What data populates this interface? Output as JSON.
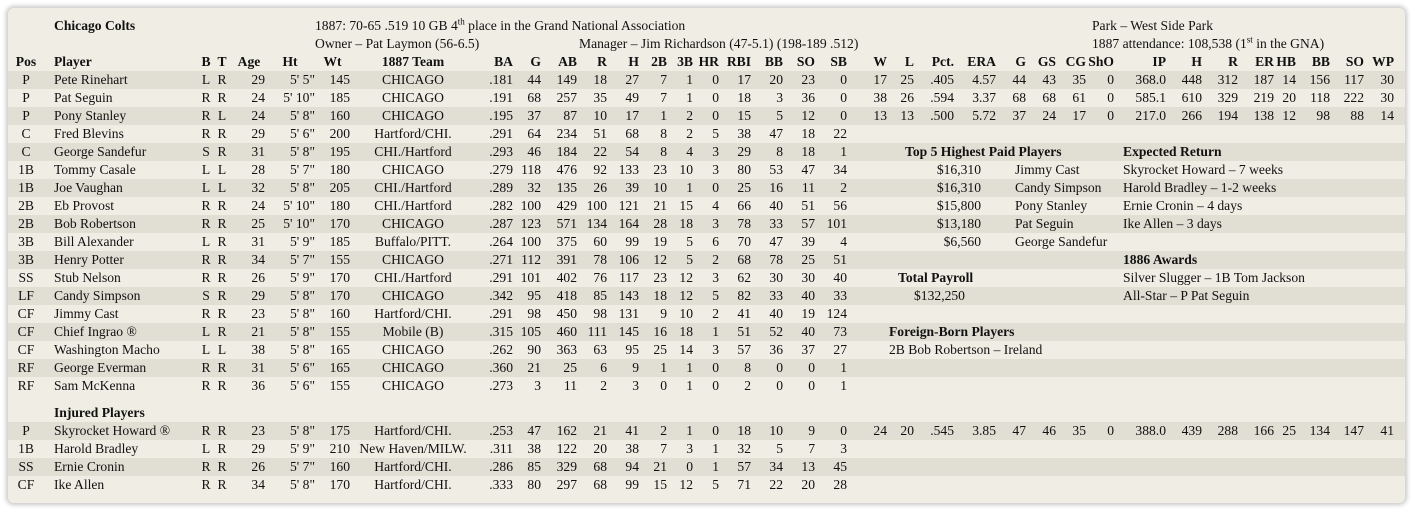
{
  "header": {
    "team": "Chicago Colts",
    "season_line": "1887:  70-65  .519  10 GB  4",
    "season_sup": "th",
    "season_rest": " place in the Grand National Association",
    "owner": "Owner – Pat Laymon (56-6.5)",
    "manager": "Manager – Jim Richardson (47-5.1)  (198-189 .512)",
    "park": "Park – West Side Park",
    "attendance": "1887 attendance:  108,538  (1",
    "attendance_sup": "st",
    "attendance_rest": " in the GNA)"
  },
  "columns": [
    "Pos",
    "Player",
    "B",
    "T",
    "Age",
    "Ht",
    "Wt",
    "1887 Team",
    "BA",
    "G",
    "AB",
    "R",
    "H",
    "2B",
    "3B",
    "HR",
    "RBI",
    "BB",
    "SO",
    "SB",
    "W",
    "L",
    "Pct.",
    "ERA",
    "G",
    "GS",
    "CG",
    "ShO",
    "IP",
    "H",
    "R",
    "ER",
    "HB",
    "BB",
    "SO",
    "WP"
  ],
  "roster": [
    {
      "pos": "P",
      "player": "Pete Rinehart",
      "b": "L",
      "t": "R",
      "age": "29",
      "ht": "5' 5\"",
      "wt": "145",
      "team": "CHICAGO",
      "ba": ".181",
      "g": "44",
      "ab": "149",
      "r": "18",
      "h": "27",
      "d": "7",
      "tr": "1",
      "hr": "0",
      "rbi": "17",
      "bb": "20",
      "so": "23",
      "sb": "0",
      "pw": "17",
      "pl": "25",
      "pct": ".405",
      "era": "4.57",
      "pg": "44",
      "gs": "43",
      "cg": "35",
      "sho": "0",
      "ip": "368.0",
      "ph": "448",
      "pr": "312",
      "er": "187",
      "hb": "14",
      "pbb": "156",
      "pso": "117",
      "wp": "30"
    },
    {
      "pos": "P",
      "player": "Pat Seguin",
      "b": "R",
      "t": "R",
      "age": "24",
      "ht": "5' 10\"",
      "wt": "185",
      "team": "CHICAGO",
      "ba": ".191",
      "g": "68",
      "ab": "257",
      "r": "35",
      "h": "49",
      "d": "7",
      "tr": "1",
      "hr": "0",
      "rbi": "18",
      "bb": "3",
      "so": "36",
      "sb": "0",
      "pw": "38",
      "pl": "26",
      "pct": ".594",
      "era": "3.37",
      "pg": "68",
      "gs": "68",
      "cg": "61",
      "sho": "0",
      "ip": "585.1",
      "ph": "610",
      "pr": "329",
      "er": "219",
      "hb": "20",
      "pbb": "118",
      "pso": "222",
      "wp": "30"
    },
    {
      "pos": "P",
      "player": "Pony Stanley",
      "b": "R",
      "t": "L",
      "age": "24",
      "ht": "5' 8\"",
      "wt": "160",
      "team": "CHICAGO",
      "ba": ".195",
      "g": "37",
      "ab": "87",
      "r": "10",
      "h": "17",
      "d": "1",
      "tr": "2",
      "hr": "0",
      "rbi": "15",
      "bb": "5",
      "so": "12",
      "sb": "0",
      "pw": "13",
      "pl": "13",
      "pct": ".500",
      "era": "5.72",
      "pg": "37",
      "gs": "24",
      "cg": "17",
      "sho": "0",
      "ip": "217.0",
      "ph": "266",
      "pr": "194",
      "er": "138",
      "hb": "12",
      "pbb": "98",
      "pso": "88",
      "wp": "14"
    },
    {
      "pos": "C",
      "player": "Fred Blevins",
      "b": "R",
      "t": "R",
      "age": "29",
      "ht": "5' 6\"",
      "wt": "200",
      "team": "Hartford/CHI.",
      "ba": ".291",
      "g": "64",
      "ab": "234",
      "r": "51",
      "h": "68",
      "d": "8",
      "tr": "2",
      "hr": "5",
      "rbi": "38",
      "bb": "47",
      "so": "18",
      "sb": "22"
    },
    {
      "pos": "C",
      "player": "George Sandefur",
      "b": "S",
      "t": "R",
      "age": "31",
      "ht": "5' 8\"",
      "wt": "195",
      "team": "CHI./Hartford",
      "ba": ".293",
      "g": "46",
      "ab": "184",
      "r": "22",
      "h": "54",
      "d": "8",
      "tr": "4",
      "hr": "3",
      "rbi": "29",
      "bb": "8",
      "so": "18",
      "sb": "1"
    },
    {
      "pos": "1B",
      "player": "Tommy Casale",
      "b": "L",
      "t": "L",
      "age": "28",
      "ht": "5' 7\"",
      "wt": "180",
      "team": "CHICAGO",
      "ba": ".279",
      "g": "118",
      "ab": "476",
      "r": "92",
      "h": "133",
      "d": "23",
      "tr": "10",
      "hr": "3",
      "rbi": "80",
      "bb": "53",
      "so": "47",
      "sb": "34"
    },
    {
      "pos": "1B",
      "player": "Joe Vaughan",
      "b": "L",
      "t": "L",
      "age": "32",
      "ht": "5' 8\"",
      "wt": "205",
      "team": "CHI./Hartford",
      "ba": ".289",
      "g": "32",
      "ab": "135",
      "r": "26",
      "h": "39",
      "d": "10",
      "tr": "1",
      "hr": "0",
      "rbi": "25",
      "bb": "16",
      "so": "11",
      "sb": "2"
    },
    {
      "pos": "2B",
      "player": "Eb Provost",
      "b": "R",
      "t": "R",
      "age": "24",
      "ht": "5' 10\"",
      "wt": "180",
      "team": "CHI./Hartford",
      "ba": ".282",
      "g": "100",
      "ab": "429",
      "r": "100",
      "h": "121",
      "d": "21",
      "tr": "15",
      "hr": "4",
      "rbi": "66",
      "bb": "40",
      "so": "51",
      "sb": "56"
    },
    {
      "pos": "2B",
      "player": "Bob Robertson",
      "b": "R",
      "t": "R",
      "age": "25",
      "ht": "5' 10\"",
      "wt": "170",
      "team": "CHICAGO",
      "ba": ".287",
      "g": "123",
      "ab": "571",
      "r": "134",
      "h": "164",
      "d": "28",
      "tr": "18",
      "hr": "3",
      "rbi": "78",
      "bb": "33",
      "so": "57",
      "sb": "101"
    },
    {
      "pos": "3B",
      "player": "Bill Alexander",
      "b": "L",
      "t": "R",
      "age": "31",
      "ht": "5' 9\"",
      "wt": "185",
      "team": "Buffalo/PITT.",
      "ba": ".264",
      "g": "100",
      "ab": "375",
      "r": "60",
      "h": "99",
      "d": "19",
      "tr": "5",
      "hr": "6",
      "rbi": "70",
      "bb": "47",
      "so": "39",
      "sb": "4"
    },
    {
      "pos": "3B",
      "player": "Henry Potter",
      "b": "R",
      "t": "R",
      "age": "34",
      "ht": "5' 7\"",
      "wt": "155",
      "team": "CHICAGO",
      "ba": ".271",
      "g": "112",
      "ab": "391",
      "r": "78",
      "h": "106",
      "d": "12",
      "tr": "5",
      "hr": "2",
      "rbi": "68",
      "bb": "78",
      "so": "25",
      "sb": "51"
    },
    {
      "pos": "SS",
      "player": "Stub Nelson",
      "b": "R",
      "t": "R",
      "age": "26",
      "ht": "5' 9\"",
      "wt": "170",
      "team": "CHI./Hartford",
      "ba": ".291",
      "g": "101",
      "ab": "402",
      "r": "76",
      "h": "117",
      "d": "23",
      "tr": "12",
      "hr": "3",
      "rbi": "62",
      "bb": "30",
      "so": "30",
      "sb": "40"
    },
    {
      "pos": "LF",
      "player": "Candy Simpson",
      "b": "S",
      "t": "R",
      "age": "29",
      "ht": "5' 8\"",
      "wt": "170",
      "team": "CHICAGO",
      "ba": ".342",
      "g": "95",
      "ab": "418",
      "r": "85",
      "h": "143",
      "d": "18",
      "tr": "12",
      "hr": "5",
      "rbi": "82",
      "bb": "33",
      "so": "40",
      "sb": "33"
    },
    {
      "pos": "CF",
      "player": "Jimmy Cast",
      "b": "R",
      "t": "R",
      "age": "23",
      "ht": "5' 8\"",
      "wt": "160",
      "team": "Hartford/CHI.",
      "ba": ".291",
      "g": "98",
      "ab": "450",
      "r": "98",
      "h": "131",
      "d": "9",
      "tr": "10",
      "hr": "2",
      "rbi": "41",
      "bb": "40",
      "so": "19",
      "sb": "124"
    },
    {
      "pos": "CF",
      "player": "Chief Ingrao ®",
      "b": "L",
      "t": "R",
      "age": "21",
      "ht": "5' 8\"",
      "wt": "155",
      "team": "Mobile (B)",
      "ba": ".315",
      "g": "105",
      "ab": "460",
      "r": "111",
      "h": "145",
      "d": "16",
      "tr": "18",
      "hr": "1",
      "rbi": "51",
      "bb": "52",
      "so": "40",
      "sb": "73"
    },
    {
      "pos": "CF",
      "player": "Washington Macho",
      "b": "L",
      "t": "L",
      "age": "38",
      "ht": "5' 8\"",
      "wt": "165",
      "team": "CHICAGO",
      "ba": ".262",
      "g": "90",
      "ab": "363",
      "r": "63",
      "h": "95",
      "d": "25",
      "tr": "14",
      "hr": "3",
      "rbi": "57",
      "bb": "36",
      "so": "37",
      "sb": "27"
    },
    {
      "pos": "RF",
      "player": "George Everman",
      "b": "R",
      "t": "R",
      "age": "31",
      "ht": "5' 6\"",
      "wt": "165",
      "team": "CHICAGO",
      "ba": ".360",
      "g": "21",
      "ab": "25",
      "r": "6",
      "h": "9",
      "d": "1",
      "tr": "1",
      "hr": "0",
      "rbi": "8",
      "bb": "0",
      "so": "0",
      "sb": "1"
    },
    {
      "pos": "RF",
      "player": "Sam McKenna",
      "b": "R",
      "t": "R",
      "age": "36",
      "ht": "5' 6\"",
      "wt": "155",
      "team": "CHICAGO",
      "ba": ".273",
      "g": "3",
      "ab": "11",
      "r": "2",
      "h": "3",
      "d": "0",
      "tr": "1",
      "hr": "0",
      "rbi": "2",
      "bb": "0",
      "so": "0",
      "sb": "1"
    }
  ],
  "injured_title": "Injured Players",
  "injured": [
    {
      "pos": "P",
      "player": "Skyrocket Howard ®",
      "b": "R",
      "t": "R",
      "age": "23",
      "ht": "5' 8\"",
      "wt": "175",
      "team": "Hartford/CHI.",
      "ba": ".253",
      "g": "47",
      "ab": "162",
      "r": "21",
      "h": "41",
      "d": "2",
      "tr": "1",
      "hr": "0",
      "rbi": "18",
      "bb": "10",
      "so": "9",
      "sb": "0",
      "pw": "24",
      "pl": "20",
      "pct": ".545",
      "era": "3.85",
      "pg": "47",
      "gs": "46",
      "cg": "35",
      "sho": "0",
      "ip": "388.0",
      "ph": "439",
      "pr": "288",
      "er": "166",
      "hb": "25",
      "pbb": "134",
      "pso": "147",
      "wp": "41"
    },
    {
      "pos": "1B",
      "player": "Harold Bradley",
      "b": "L",
      "t": "R",
      "age": "29",
      "ht": "5' 9\"",
      "wt": "210",
      "team": "New Haven/MILW.",
      "ba": ".311",
      "g": "38",
      "ab": "122",
      "r": "20",
      "h": "38",
      "d": "7",
      "tr": "3",
      "hr": "1",
      "rbi": "32",
      "bb": "5",
      "so": "7",
      "sb": "3"
    },
    {
      "pos": "SS",
      "player": "Ernie Cronin",
      "b": "R",
      "t": "R",
      "age": "26",
      "ht": "5' 7\"",
      "wt": "160",
      "team": "Hartford/CHI.",
      "ba": ".286",
      "g": "85",
      "ab": "329",
      "r": "68",
      "h": "94",
      "d": "21",
      "tr": "0",
      "hr": "1",
      "rbi": "57",
      "bb": "34",
      "so": "13",
      "sb": "45"
    },
    {
      "pos": "CF",
      "player": "Ike Allen",
      "b": "R",
      "t": "R",
      "age": "34",
      "ht": "5' 8\"",
      "wt": "170",
      "team": "Hartford/CHI.",
      "ba": ".333",
      "g": "80",
      "ab": "297",
      "r": "68",
      "h": "99",
      "d": "15",
      "tr": "12",
      "hr": "5",
      "rbi": "71",
      "bb": "22",
      "so": "20",
      "sb": "28"
    }
  ],
  "top_paid": {
    "title": "Top 5 Highest Paid Players",
    "players": [
      {
        "salary": "$16,310",
        "name": "Jimmy Cast"
      },
      {
        "salary": "$16,310",
        "name": "Candy Simpson"
      },
      {
        "salary": "$15,800",
        "name": "Pony Stanley"
      },
      {
        "salary": "$13,180",
        "name": "Pat Seguin"
      },
      {
        "salary": "$6,560",
        "name": "George Sandefur"
      }
    ]
  },
  "expected_return": {
    "title": "Expected Return",
    "items": [
      "Skyrocket Howard – 7 weeks",
      "Harold Bradley – 1-2 weeks",
      "Ernie Cronin – 4 days",
      "Ike Allen – 3 days"
    ]
  },
  "awards": {
    "title": "1886 Awards",
    "items": [
      "Silver Slugger – 1B Tom Jackson",
      "All-Star – P Pat Seguin"
    ]
  },
  "payroll": {
    "title": "Total Payroll",
    "value": "$132,250"
  },
  "foreign_born": {
    "title": "Foreign-Born Players",
    "items": [
      "2B Bob Robertson – Ireland"
    ]
  }
}
